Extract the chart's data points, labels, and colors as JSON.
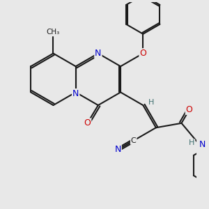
{
  "background_color": "#e8e8e8",
  "bond_color": "#1a1a1a",
  "bond_width": 1.5,
  "atom_colors": {
    "N": "#0000cc",
    "O": "#cc0000",
    "C": "#1a1a1a",
    "H": "#407070"
  },
  "figsize": [
    3.0,
    3.0
  ],
  "dpi": 100,
  "xlim": [
    -0.3,
    4.8
  ],
  "ylim": [
    -1.5,
    4.2
  ]
}
